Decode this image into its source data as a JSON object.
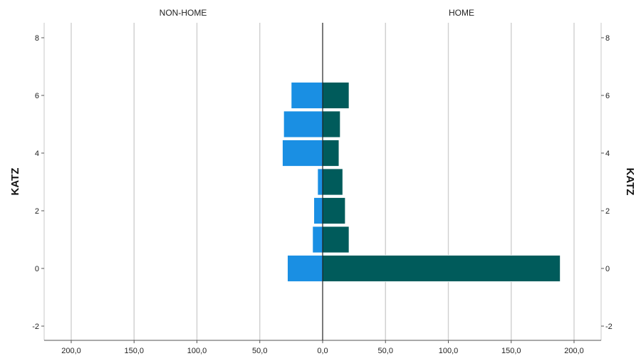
{
  "chart_data": {
    "type": "bar",
    "orientation": "horizontal-population-pyramid",
    "y_axis_label": "KATZ",
    "y_ticks": [
      "8",
      "6",
      "4",
      "2",
      "0",
      "-2"
    ],
    "ylim": [
      -2.5,
      8.5
    ],
    "xlim": [
      -200,
      200
    ],
    "x_tick_labels": [
      "200,0",
      "150,0",
      "100,0",
      "50,0",
      "0,0",
      "50,0",
      "100,0",
      "150,0",
      "200,0"
    ],
    "grid": "vertical",
    "panels": [
      {
        "name": "NON-HOME",
        "color": "#1a8fe3"
      },
      {
        "name": "HOME",
        "color": "#005b5b"
      }
    ],
    "bins": [
      {
        "katz": 0,
        "non_home": 28,
        "home": 189
      },
      {
        "katz": 1,
        "non_home": 8,
        "home": 21
      },
      {
        "katz": 2,
        "non_home": 7,
        "home": 18
      },
      {
        "katz": 3,
        "non_home": 4,
        "home": 16
      },
      {
        "katz": 4,
        "non_home": 32,
        "home": 13
      },
      {
        "katz": 5,
        "non_home": 31,
        "home": 14
      },
      {
        "katz": 6,
        "non_home": 25,
        "home": 21
      }
    ]
  }
}
